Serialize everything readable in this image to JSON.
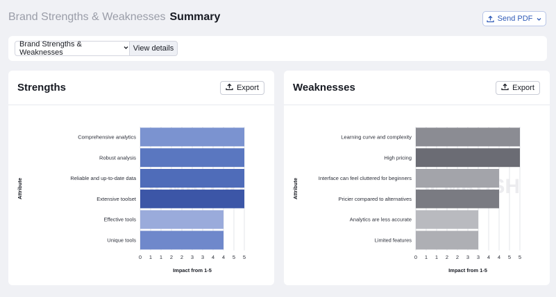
{
  "header": {
    "breadcrumb": "Brand Strengths & Weaknesses",
    "title": "Summary"
  },
  "send_pdf": {
    "label": "Send PDF",
    "icon": "upload-icon"
  },
  "toolbar": {
    "dropdown_label": "Brand Strengths & Weaknesses",
    "view_details_label": "View details"
  },
  "panels": [
    {
      "title": "Strengths",
      "export_label": "Export"
    },
    {
      "title": "Weaknesses",
      "export_label": "Export"
    }
  ],
  "watermark": "SEMRUSH",
  "chart_data": [
    {
      "type": "bar",
      "orientation": "horizontal",
      "categories": [
        "Comprehensive analytics",
        "Robust analysis",
        "Reliable and up-to-date data",
        "Extensive toolset",
        "Effective tools",
        "Unique tools"
      ],
      "values": [
        5,
        5,
        5,
        5,
        4,
        4
      ],
      "colors": [
        "#7b93d0",
        "#5a77c0",
        "#4f6cb9",
        "#3c56a7",
        "#9aabdb",
        "#6f88cb"
      ],
      "xlabel": "Impact from 1-5",
      "ylabel": "Attribute",
      "xticks": [
        "0",
        "1",
        "1",
        "2",
        "2",
        "3",
        "3",
        "4",
        "4",
        "5",
        "5"
      ],
      "xlim": [
        0,
        5
      ],
      "grid": true
    },
    {
      "type": "bar",
      "orientation": "horizontal",
      "categories": [
        "Learning curve and complexity",
        "High pricing",
        "Interface can feel cluttered for beginners",
        "Pricier compared to alternatives",
        "Analytics are less accurate",
        "Limited features"
      ],
      "values": [
        5,
        5,
        4,
        4,
        3,
        3
      ],
      "colors": [
        "#8b8c93",
        "#6b6c74",
        "#a3a4aa",
        "#7a7b82",
        "#b9babf",
        "#aeafb4"
      ],
      "xlabel": "Impact from 1-5",
      "ylabel": "Attribute",
      "xticks": [
        "0",
        "1",
        "1",
        "2",
        "2",
        "3",
        "3",
        "4",
        "4",
        "5",
        "5"
      ],
      "xlim": [
        0,
        5
      ],
      "grid": true
    }
  ]
}
